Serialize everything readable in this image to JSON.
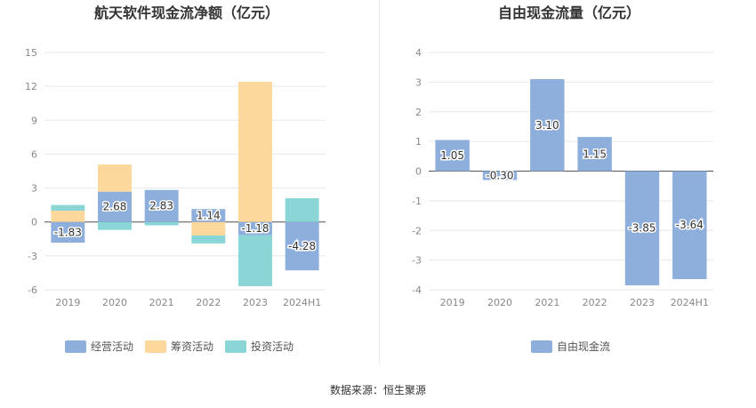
{
  "source_label": "数据来源：恒生聚源",
  "chart_data": [
    {
      "type": "bar",
      "stacked": true,
      "title": "航天软件现金流净额（亿元）",
      "categories": [
        "2019",
        "2020",
        "2021",
        "2022",
        "2023",
        "2024H1"
      ],
      "ylim": [
        -6,
        15
      ],
      "yticks": [
        -6,
        -3,
        0,
        3,
        6,
        9,
        12,
        15
      ],
      "grid": true,
      "legend_position": "bottom",
      "series": [
        {
          "name": "经营活动",
          "color": "#8eaedc",
          "values": [
            -1.83,
            2.68,
            2.83,
            1.14,
            -1.18,
            -4.28
          ],
          "labels": [
            "-1.83",
            "2.68",
            "2.83",
            "1.14",
            "-1.18",
            "-4.28"
          ]
        },
        {
          "name": "筹资活动",
          "color": "#fdd89c",
          "values": [
            1.0,
            2.4,
            0.0,
            -1.2,
            12.4,
            0.0
          ]
        },
        {
          "name": "投资活动",
          "color": "#8ad6d6",
          "values": [
            0.5,
            -0.7,
            -0.3,
            -0.7,
            -4.5,
            2.1
          ]
        }
      ]
    },
    {
      "type": "bar",
      "title": "自由现金流量（亿元）",
      "categories": [
        "2019",
        "2020",
        "2021",
        "2022",
        "2023",
        "2024H1"
      ],
      "ylim": [
        -4,
        4
      ],
      "yticks": [
        -4,
        -3,
        -2,
        -1,
        0,
        1,
        2,
        3,
        4
      ],
      "grid": true,
      "legend_position": "bottom",
      "series": [
        {
          "name": "自由现金流",
          "color": "#8eaedc",
          "values": [
            1.05,
            -0.3,
            3.1,
            1.15,
            -3.85,
            -3.64
          ],
          "labels": [
            "1.05",
            "-0.30",
            "3.10",
            "1.15",
            "-3.85",
            "-3.64"
          ]
        }
      ]
    }
  ]
}
